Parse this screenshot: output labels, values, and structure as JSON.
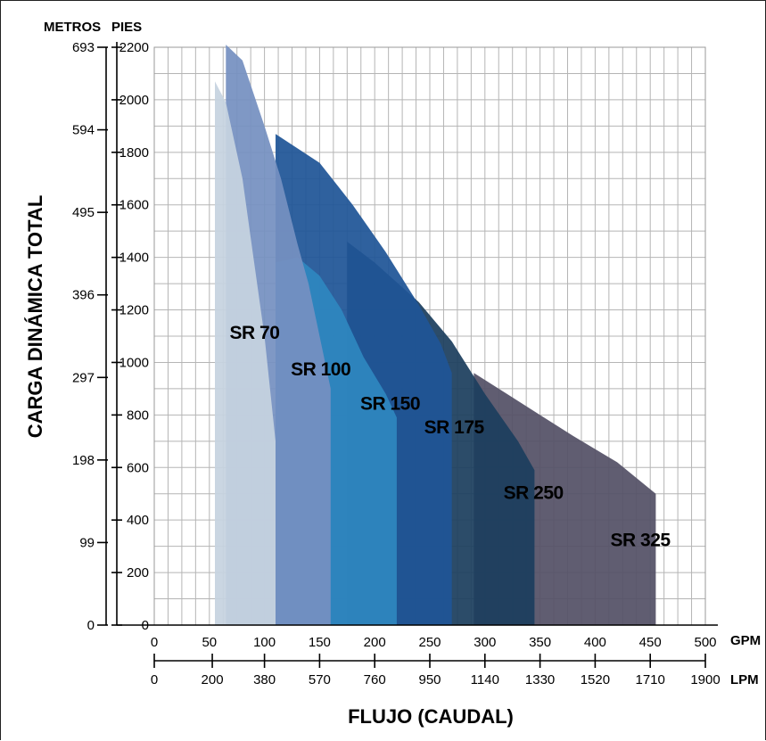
{
  "chart_data": {
    "type": "area",
    "title": "",
    "xlabel": "FLUJO (CAUDAL)",
    "ylabel": "CARGA DINÁMICA TOTAL",
    "grid": true,
    "legend": "none",
    "x_axis_primary": {
      "unit": "GPM",
      "range": [
        0,
        500
      ],
      "ticks": [
        "0",
        "50",
        "100",
        "150",
        "200",
        "250",
        "300",
        "350",
        "400",
        "450",
        "500"
      ]
    },
    "x_axis_secondary": {
      "unit": "LPM",
      "range": [
        0,
        1900
      ],
      "ticks": [
        "0",
        "200",
        "380",
        "570",
        "760",
        "950",
        "1140",
        "1330",
        "1520",
        "1710",
        "1900"
      ]
    },
    "y_axis_primary": {
      "unit": "PIES",
      "range": [
        0,
        2200
      ],
      "ticks": [
        "0",
        "200",
        "400",
        "600",
        "800",
        "1000",
        "1200",
        "1400",
        "1600",
        "1800",
        "2000",
        "2200"
      ]
    },
    "y_axis_secondary": {
      "unit": "METROS",
      "range": [
        0,
        693
      ],
      "ticks": [
        "0",
        "99",
        "198",
        "297",
        "396",
        "495",
        "594",
        "693"
      ]
    },
    "series": [
      {
        "name": "SR 70",
        "color": "#c6d3e0",
        "x_gpm": [
          55,
          55,
          65,
          80,
          90,
          100,
          105,
          110,
          110
        ],
        "y_ft": [
          0,
          2070,
          1990,
          1700,
          1400,
          1100,
          900,
          700,
          0
        ]
      },
      {
        "name": "SR 100",
        "color": "#7590c1",
        "x_gpm": [
          65,
          65,
          80,
          100,
          115,
          130,
          140,
          150,
          160,
          160
        ],
        "y_ft": [
          0,
          2210,
          2150,
          1900,
          1700,
          1450,
          1300,
          1100,
          900,
          0
        ]
      },
      {
        "name": "SR 150",
        "color": "#2e87bf",
        "x_gpm": [
          110,
          110,
          130,
          150,
          170,
          190,
          210,
          220,
          220
        ],
        "y_ft": [
          0,
          1380,
          1400,
          1330,
          1200,
          1020,
          880,
          790,
          0
        ]
      },
      {
        "name": "SR 175",
        "color": "#1f5597",
        "x_gpm": [
          110,
          110,
          150,
          180,
          210,
          240,
          260,
          270,
          270
        ],
        "y_ft": [
          0,
          1870,
          1760,
          1600,
          1420,
          1220,
          1070,
          960,
          0
        ]
      },
      {
        "name": "SR 250",
        "color": "#1c3e5e",
        "x_gpm": [
          175,
          175,
          200,
          240,
          270,
          300,
          330,
          345,
          345
        ],
        "y_ft": [
          0,
          1460,
          1380,
          1230,
          1080,
          880,
          700,
          590,
          0
        ]
      },
      {
        "name": "SR 325",
        "color": "#545166",
        "x_gpm": [
          290,
          290,
          320,
          350,
          380,
          420,
          455,
          455
        ],
        "y_ft": [
          0,
          960,
          880,
          800,
          720,
          620,
          500,
          0
        ]
      }
    ],
    "labels": [
      {
        "text": "SR 70",
        "x_gpm": 91,
        "y_ft": 1090
      },
      {
        "text": "SR 100",
        "x_gpm": 151,
        "y_ft": 950
      },
      {
        "text": "SR 150",
        "x_gpm": 214,
        "y_ft": 820
      },
      {
        "text": "SR 175",
        "x_gpm": 272,
        "y_ft": 730
      },
      {
        "text": "SR 250",
        "x_gpm": 344,
        "y_ft": 480
      },
      {
        "text": "SR 325",
        "x_gpm": 441,
        "y_ft": 300
      }
    ]
  }
}
